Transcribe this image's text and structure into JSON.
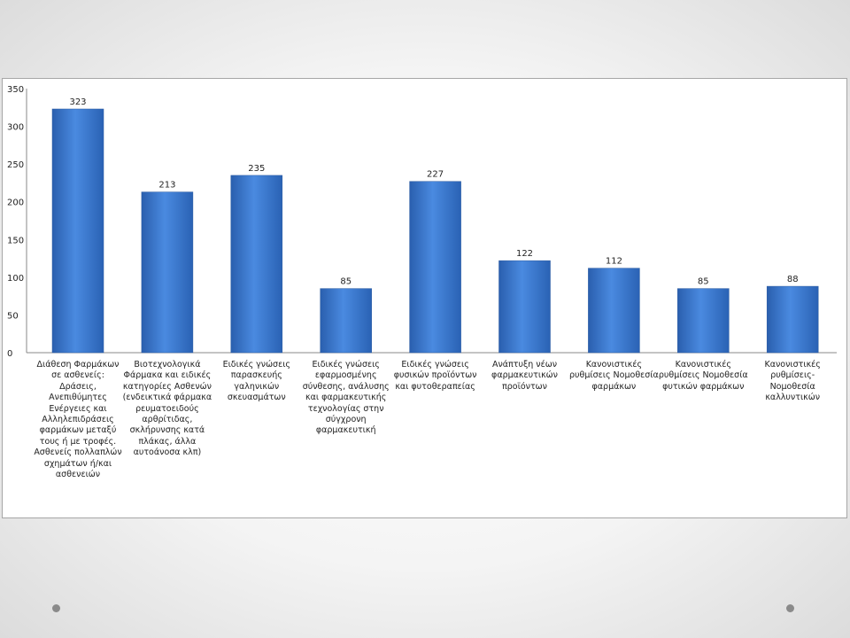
{
  "chart_data": {
    "type": "bar",
    "title": "",
    "xlabel": "",
    "ylabel": "",
    "ylim": [
      0,
      350
    ],
    "yticks": [
      0,
      50,
      100,
      150,
      200,
      250,
      300,
      350
    ],
    "grid": false,
    "bar_color": "#3a78cc",
    "categories": [
      "Διάθεση Φαρμάκων σε ασθενείς: Δράσεις, Ανεπιθύμητες Ενέργειες και Αλληλεπιδράσεις φαρμάκων μεταξύ τους ή με τροφές. Ασθενείς πολλαπλών σχημάτων ή/και ασθενειών",
      "Βιοτεχνολογικά Φάρμακα και ειδικές κατηγορίες Ασθενών (ενδεικτικά φάρμακα ρευματοειδούς αρθρίτιδας, σκλήρυνσης κατά πλάκας, άλλα αυτοάνοσα κλπ)",
      "Ειδικές γνώσεις παρασκευής γαληνικών σκευασμάτων",
      "Ειδικές γνώσεις εφαρμοσμένης σύνθεσης, ανάλυσης και φαρμακευτικής τεχνολογίας στην σύγχρονη φαρμακευτική",
      "Ειδικές γνώσεις φυσικών προϊόντων και φυτοθεραπείας",
      "Ανάπτυξη νέων φαρμακευτικών προϊόντων",
      "Κανονιστικές ρυθμίσεις Νομοθεσία φαρμάκων",
      "Κανονιστικές ρυθμίσεις Νομοθεσία φυτικών φαρμάκων",
      "Κανονιστικές ρυθμίσεις- Νομοθεσία καλλυντικών"
    ],
    "values": [
      323,
      213,
      235,
      85,
      227,
      122,
      112,
      85,
      88
    ]
  }
}
